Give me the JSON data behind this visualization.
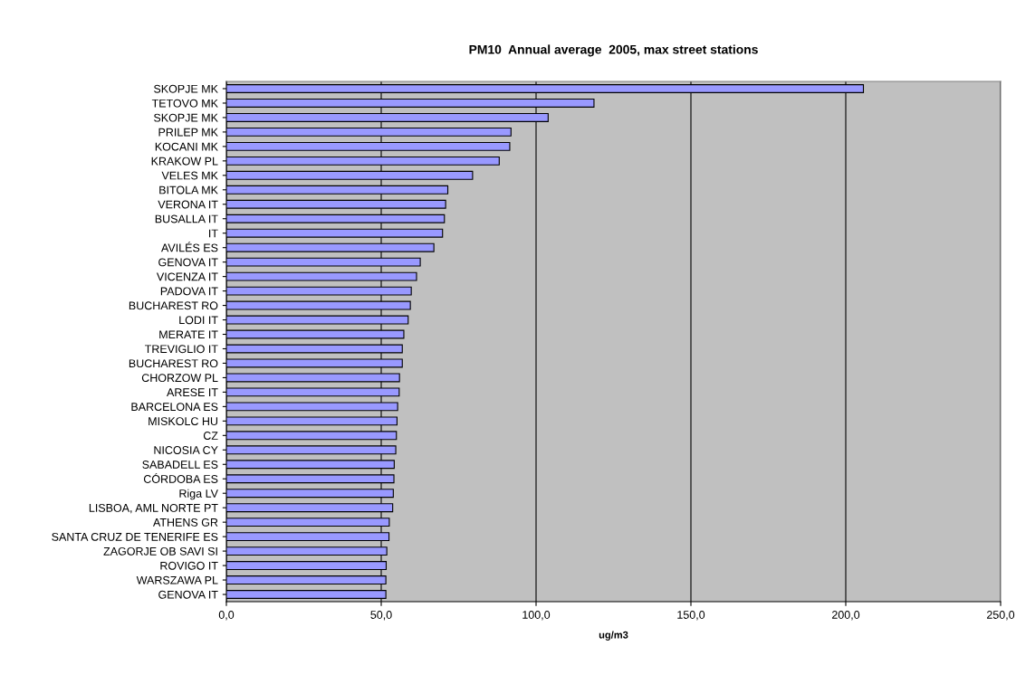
{
  "chart_data": {
    "type": "bar",
    "orientation": "horizontal",
    "title": "PM10  Annual average  2005, max street stations",
    "xlabel": "ug/m3",
    "categories": [
      "SKOPJE MK",
      "TETOVO MK",
      "SKOPJE MK",
      "PRILEP MK",
      "KOCANI MK",
      "KRAKOW PL",
      "VELES MK",
      "BITOLA MK",
      "VERONA IT",
      "BUSALLA IT",
      "IT",
      "AVILÉS ES",
      "GENOVA IT",
      "VICENZA IT",
      "PADOVA IT",
      "BUCHAREST RO",
      "LODI IT",
      "MERATE IT",
      "TREVIGLIO IT",
      "BUCHAREST RO",
      "CHORZOW PL",
      "ARESE IT",
      "BARCELONA ES",
      "MISKOLC HU",
      "CZ",
      "NICOSIA CY",
      "SABADELL ES",
      "CÓRDOBA ES",
      "Riga LV",
      "LISBOA, AML NORTE PT",
      "ATHENS GR",
      "SANTA CRUZ DE TENERIFE ES",
      "ZAGORJE OB SAVI SI",
      "ROVIGO IT",
      "WARSZAWA PL",
      "GENOVA IT"
    ],
    "values": [
      205.7,
      118.7,
      103.9,
      91.9,
      91.5,
      88.1,
      79.5,
      71.5,
      70.8,
      70.4,
      69.8,
      67.0,
      62.6,
      61.4,
      59.7,
      59.4,
      58.7,
      57.3,
      56.8,
      56.8,
      55.9,
      55.8,
      55.3,
      55.1,
      54.9,
      54.7,
      54.2,
      54.1,
      53.9,
      53.7,
      52.6,
      52.5,
      51.8,
      51.6,
      51.5,
      51.5
    ],
    "color": "#9999ff",
    "xlim": [
      0,
      250
    ],
    "xticks": [
      {
        "value": 0,
        "label": "0,0"
      },
      {
        "value": 50,
        "label": "50,0"
      },
      {
        "value": 100,
        "label": "100,0"
      },
      {
        "value": 150,
        "label": "150,0"
      },
      {
        "value": 200,
        "label": "200,0"
      },
      {
        "value": 250,
        "label": "250,0"
      }
    ],
    "grid": "x"
  }
}
